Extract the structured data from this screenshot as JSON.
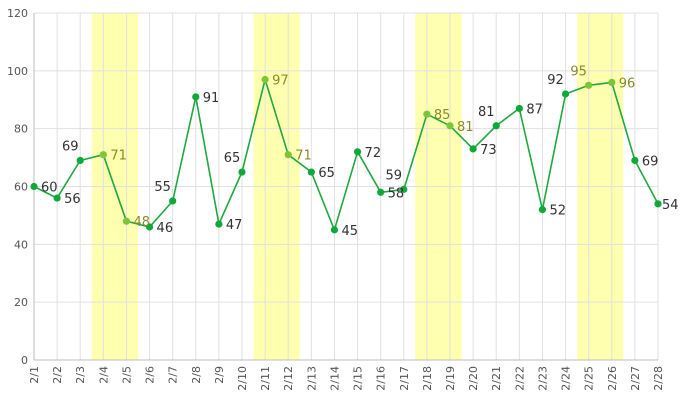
{
  "chart_data": {
    "type": "line",
    "title": "",
    "xlabel": "",
    "ylabel": "",
    "ylim": [
      0,
      120
    ],
    "yticks": [
      0,
      20,
      40,
      60,
      80,
      100,
      120
    ],
    "grid": true,
    "categories": [
      "2/1",
      "2/2",
      "2/3",
      "2/4",
      "2/5",
      "2/6",
      "2/7",
      "2/8",
      "2/9",
      "2/10",
      "2/11",
      "2/12",
      "2/13",
      "2/14",
      "2/15",
      "2/16",
      "2/17",
      "2/18",
      "2/19",
      "2/20",
      "2/21",
      "2/22",
      "2/23",
      "2/24",
      "2/25",
      "2/26",
      "2/27",
      "2/28"
    ],
    "values": [
      60,
      56,
      69,
      71,
      48,
      46,
      55,
      91,
      47,
      65,
      97,
      71,
      65,
      45,
      72,
      58,
      59,
      85,
      81,
      73,
      81,
      87,
      52,
      92,
      95,
      96,
      69,
      54
    ],
    "highlighted_ranges": [
      [
        "2/4",
        "2/5"
      ],
      [
        "2/11",
        "2/12"
      ],
      [
        "2/18",
        "2/19"
      ],
      [
        "2/25",
        "2/26"
      ]
    ],
    "colors": {
      "line": "#1fa83f",
      "point": "#0fa83a",
      "highlight_point": "#7dc63a",
      "highlight_band": "#ffffb0",
      "label": "#333333",
      "highlight_label": "#8a8a2a"
    }
  }
}
